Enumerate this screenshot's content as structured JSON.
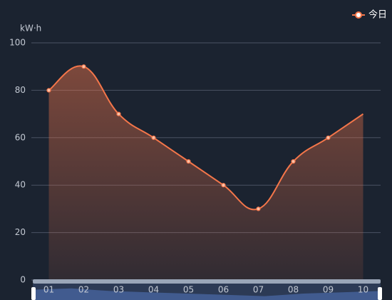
{
  "chart_data": {
    "type": "line",
    "unit": "kW·h",
    "categories": [
      "01",
      "02",
      "03",
      "04",
      "05",
      "06",
      "07",
      "08",
      "09",
      "10"
    ],
    "series": [
      {
        "name": "今日",
        "color": "#f4764a",
        "values": [
          80,
          90,
          70,
          60,
          50,
          40,
          30,
          50,
          60,
          70
        ]
      }
    ],
    "ylim": [
      0,
      100
    ],
    "yticks": [
      0,
      20,
      40,
      60,
      80,
      100
    ],
    "grid": true,
    "legend": "top-right",
    "data_zoom": true
  }
}
